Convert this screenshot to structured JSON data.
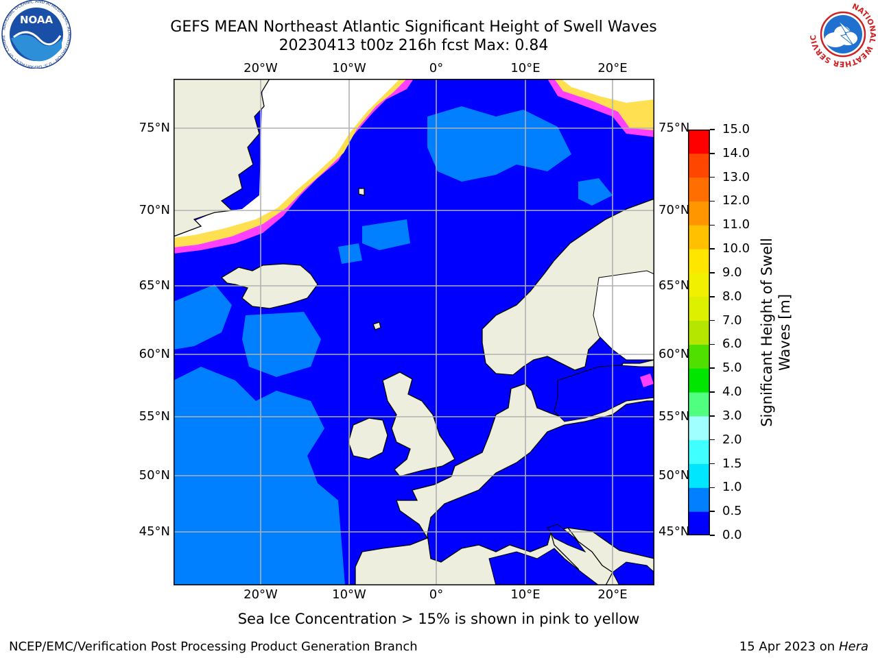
{
  "title": {
    "line1": "GEFS MEAN Northeast Atlantic Significant Height of Swell Waves",
    "line2": "20230413 t00z 216h fcst   Max: 0.84"
  },
  "map": {
    "lon_labels": [
      "20°W",
      "10°W",
      "0°",
      "10°E",
      "20°E"
    ],
    "lat_labels": [
      "75°N",
      "70°N",
      "65°N",
      "60°N",
      "55°N",
      "50°N",
      "45°N"
    ],
    "colors": {
      "ocean_low": "#0000ff",
      "ocean_mid": "#0080ff",
      "land": "#eeeede",
      "ice_white": "#ffffff",
      "ice_pink": "#ff40ff",
      "ice_yellow": "#ffe050",
      "grid": "#b0b0b0"
    }
  },
  "colorbar": {
    "label": "Significant Height of Swell Waves [m]",
    "label_line1": "Significant Height of Swell",
    "label_line2": "Waves [m]",
    "ticks": [
      "15.0",
      "14.0",
      "13.0",
      "12.0",
      "11.0",
      "10.0",
      "9.0",
      "8.0",
      "7.0",
      "6.0",
      "5.0",
      "4.0",
      "3.0",
      "2.0",
      "1.5",
      "1.0",
      "0.5",
      "0.0"
    ],
    "bins": [
      {
        "min": 0.0,
        "max": 0.5,
        "color": "#0000ff"
      },
      {
        "min": 0.5,
        "max": 1.0,
        "color": "#0080ff"
      },
      {
        "min": 1.0,
        "max": 1.5,
        "color": "#00e6ff"
      },
      {
        "min": 1.5,
        "max": 2.0,
        "color": "#40ffff"
      },
      {
        "min": 2.0,
        "max": 3.0,
        "color": "#a0ffff"
      },
      {
        "min": 3.0,
        "max": 4.0,
        "color": "#50ff80"
      },
      {
        "min": 4.0,
        "max": 5.0,
        "color": "#00e600"
      },
      {
        "min": 5.0,
        "max": 6.0,
        "color": "#50e000"
      },
      {
        "min": 6.0,
        "max": 7.0,
        "color": "#b4e600"
      },
      {
        "min": 7.0,
        "max": 8.0,
        "color": "#dcf000"
      },
      {
        "min": 8.0,
        "max": 9.0,
        "color": "#f0f000"
      },
      {
        "min": 9.0,
        "max": 10.0,
        "color": "#ffe600"
      },
      {
        "min": 10.0,
        "max": 11.0,
        "color": "#ffc000"
      },
      {
        "min": 11.0,
        "max": 12.0,
        "color": "#ff9600"
      },
      {
        "min": 12.0,
        "max": 13.0,
        "color": "#ff6e00"
      },
      {
        "min": 13.0,
        "max": 14.0,
        "color": "#ff4600"
      },
      {
        "min": 14.0,
        "max": 15.0,
        "color": "#ff0000"
      }
    ]
  },
  "note": "Sea Ice Concentration > 15% is shown in pink to yellow",
  "footer": {
    "left": "NCEP/EMC/Verification Post Processing Product Generation Branch",
    "right_date": "15 Apr 2023 on ",
    "right_machine": "Hera"
  },
  "logos": {
    "noaa_text": "NOAA",
    "noaa_ring_text": "NATIONAL OCEANIC AND ATMOSPHERIC ADMINISTRATION · U.S. DEPARTMENT OF COMMERCE",
    "nws_ring_text": "NATIONAL WEATHER SERVICE"
  }
}
